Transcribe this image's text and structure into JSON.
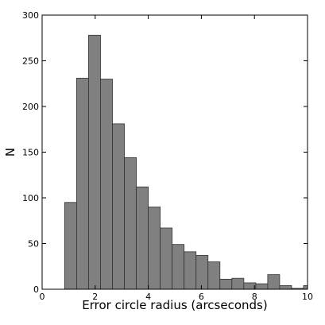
{
  "chart_data": {
    "type": "bar",
    "title": "",
    "xlabel": "Error circle radius (arcseconds)",
    "ylabel": "N",
    "xlim": [
      0,
      10
    ],
    "ylim": [
      0,
      300
    ],
    "xticks": [
      0,
      2,
      4,
      6,
      8,
      10
    ],
    "yticks": [
      0,
      50,
      100,
      150,
      200,
      250,
      300
    ],
    "grid": false,
    "bar_color": "#808080",
    "bar_edge_color": "#333333",
    "bins": [
      {
        "x0": 0.85,
        "x1": 1.3,
        "value": 95
      },
      {
        "x0": 1.3,
        "x1": 1.75,
        "value": 231
      },
      {
        "x0": 1.75,
        "x1": 2.2,
        "value": 278
      },
      {
        "x0": 2.2,
        "x1": 2.65,
        "value": 230
      },
      {
        "x0": 2.65,
        "x1": 3.1,
        "value": 181
      },
      {
        "x0": 3.1,
        "x1": 3.55,
        "value": 144
      },
      {
        "x0": 3.55,
        "x1": 4.0,
        "value": 112
      },
      {
        "x0": 4.0,
        "x1": 4.45,
        "value": 90
      },
      {
        "x0": 4.45,
        "x1": 4.9,
        "value": 67
      },
      {
        "x0": 4.9,
        "x1": 5.35,
        "value": 49
      },
      {
        "x0": 5.35,
        "x1": 5.8,
        "value": 41
      },
      {
        "x0": 5.8,
        "x1": 6.25,
        "value": 37
      },
      {
        "x0": 6.25,
        "x1": 6.7,
        "value": 30
      },
      {
        "x0": 6.7,
        "x1": 7.15,
        "value": 11
      },
      {
        "x0": 7.15,
        "x1": 7.6,
        "value": 12
      },
      {
        "x0": 7.6,
        "x1": 8.05,
        "value": 7
      },
      {
        "x0": 8.05,
        "x1": 8.5,
        "value": 6
      },
      {
        "x0": 8.5,
        "x1": 8.95,
        "value": 16
      },
      {
        "x0": 8.95,
        "x1": 9.4,
        "value": 4
      },
      {
        "x0": 9.4,
        "x1": 9.85,
        "value": 1
      },
      {
        "x0": 9.85,
        "x1": 10.3,
        "value": 4
      }
    ]
  }
}
